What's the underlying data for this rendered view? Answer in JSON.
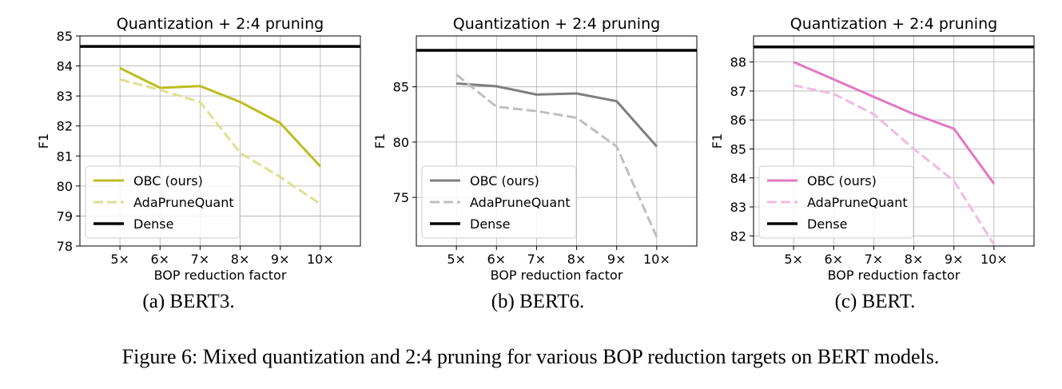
{
  "figure": {
    "caption": "Figure 6: Mixed quantization and 2:4 pruning for various BOP reduction targets on BERT models."
  },
  "subcaptions": [
    "(a) BERT3.",
    "(b) BERT6.",
    "(c) BERT."
  ],
  "chart_data": [
    {
      "type": "line",
      "title": "Quantization + 2:4 pruning",
      "xlabel": "BOP reduction factor",
      "ylabel": "F1",
      "categories": [
        "5×",
        "6×",
        "7×",
        "8×",
        "9×",
        "10×"
      ],
      "xlim": [
        4,
        11
      ],
      "ylim": [
        78,
        85
      ],
      "yticks": [
        78,
        79,
        80,
        81,
        82,
        83,
        84,
        85
      ],
      "ytick_labels": [
        "78",
        "79",
        "80",
        "81",
        "82",
        "83",
        "84",
        "85"
      ],
      "grid": true,
      "legend": "lower-left",
      "series": [
        {
          "name": "OBC (ours)",
          "color": "#bcbd22",
          "style": "solid",
          "values": [
            83.93,
            83.27,
            83.33,
            82.8,
            82.1,
            80.65
          ]
        },
        {
          "name": "AdaPruneQuant",
          "color": "#dfdf91",
          "style": "dashed",
          "values": [
            83.55,
            83.2,
            82.8,
            81.1,
            80.3,
            79.4
          ]
        },
        {
          "name": "Dense",
          "color": "#000000",
          "style": "hline",
          "value": 84.65
        }
      ]
    },
    {
      "type": "line",
      "title": "Quantization + 2:4 pruning",
      "xlabel": "BOP reduction factor",
      "ylabel": "F1",
      "categories": [
        "5×",
        "6×",
        "7×",
        "8×",
        "9×",
        "10×"
      ],
      "xlim": [
        4,
        11
      ],
      "ylim": [
        70.6,
        89.6
      ],
      "yticks": [
        75,
        80,
        85
      ],
      "ytick_labels": [
        "75",
        "80",
        "85"
      ],
      "grid": true,
      "legend": "lower-left",
      "series": [
        {
          "name": "OBC (ours)",
          "color": "#7f7f7f",
          "style": "solid",
          "values": [
            85.3,
            85.05,
            84.3,
            84.4,
            83.7,
            79.6
          ]
        },
        {
          "name": "AdaPruneQuant",
          "color": "#bfbfbf",
          "style": "dashed",
          "values": [
            86.1,
            83.2,
            82.8,
            82.2,
            79.6,
            71.4
          ]
        },
        {
          "name": "Dense",
          "color": "#000000",
          "style": "hline",
          "value": 88.3
        }
      ]
    },
    {
      "type": "line",
      "title": "Quantization + 2:4 pruning",
      "xlabel": "BOP reduction factor",
      "ylabel": "F1",
      "categories": [
        "5×",
        "6×",
        "7×",
        "8×",
        "9×",
        "10×"
      ],
      "xlim": [
        4,
        11
      ],
      "ylim": [
        81.65,
        88.9
      ],
      "yticks": [
        82,
        83,
        84,
        85,
        86,
        87,
        88
      ],
      "ytick_labels": [
        "82",
        "83",
        "84",
        "85",
        "86",
        "87",
        "88"
      ],
      "grid": true,
      "legend": "lower-left",
      "series": [
        {
          "name": "OBC (ours)",
          "color": "#e377c2",
          "style": "solid",
          "values": [
            88.0,
            87.4,
            86.8,
            86.2,
            85.7,
            83.8
          ]
        },
        {
          "name": "AdaPruneQuant",
          "color": "#f1bbe0",
          "style": "dashed",
          "values": [
            87.2,
            86.9,
            86.2,
            85.0,
            83.9,
            81.7
          ]
        },
        {
          "name": "Dense",
          "color": "#000000",
          "style": "hline",
          "value": 88.52
        }
      ]
    }
  ]
}
